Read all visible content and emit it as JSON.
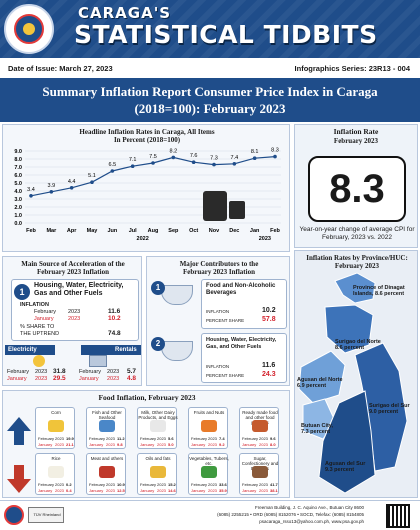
{
  "header": {
    "subtitle": "CARAGA'S",
    "title": "STATISTICAL TIDBITS",
    "date_of_issue": "Date of Issue: March 27, 2023",
    "series": "Infographics Series: 23R13 - 004"
  },
  "report_title": {
    "line1": "Summary Inflation Report Consumer Price Index in Caraga",
    "line2": "(2018=100): February 2023"
  },
  "headline_chart": {
    "title_line1": "Headline Inflation Rates in Caraga, All Items",
    "title_line2": "In Percent (2018=100)",
    "year_2022": "2022",
    "year_2023": "2023"
  },
  "chart_data": {
    "type": "line",
    "categories": [
      "Feb",
      "Mar",
      "Apr",
      "May",
      "Jun",
      "Jul",
      "Aug",
      "Sep",
      "Oct",
      "Nov",
      "Dec",
      "Jan",
      "Feb"
    ],
    "values": [
      3.4,
      3.9,
      4.4,
      5.1,
      6.5,
      7.1,
      7.5,
      8.2,
      7.6,
      7.3,
      7.4,
      8.1,
      8.3
    ],
    "y_ticks": [
      "0.0",
      "1.0",
      "2.0",
      "3.0",
      "4.0",
      "5.0",
      "6.0",
      "7.0",
      "8.0",
      "9.0"
    ],
    "ylim": [
      0,
      9
    ],
    "grid": true,
    "color": "#1f4d8a"
  },
  "inflation_rate": {
    "title_line1": "Inflation Rate",
    "title_line2": "February 2023",
    "value": "8.3",
    "note": "Year-on-year change of average CPI for February, 2023 vs. 2022"
  },
  "main_source": {
    "title_line1": "Main Source of Acceleration of the",
    "title_line2": "February 2023 Inflation",
    "rank": "1",
    "heading": "Housing, Water, Electricity, Gas and Other Fuels",
    "inflation_label": "INFLATION",
    "feb_label": "February",
    "feb_year": "2023",
    "feb_value": "11.6",
    "jan_label": "January",
    "jan_year": "2023",
    "jan_value": "10.2",
    "share_label": "% SHARE TO",
    "share_label2": "THE UPTREND",
    "share_value": "74.8",
    "electricity": {
      "label": "Electricity",
      "feb_label": "February",
      "feb_year": "2023",
      "feb_value": "31.8",
      "jan_label": "January",
      "jan_year": "2023",
      "jan_value": "29.5"
    },
    "rentals": {
      "label": "Rentals",
      "feb_label": "February",
      "feb_year": "2023",
      "feb_value": "5.7",
      "jan_label": "January",
      "jan_year": "2023",
      "jan_value": "4.8"
    }
  },
  "major_contributors": {
    "title_line1": "Major Contributors to the",
    "title_line2": "February 2023 Inflation",
    "items": [
      {
        "rank": "1",
        "name": "Food and Non-Alcoholic Beverages",
        "inflation_label": "INFLATION",
        "inflation": "10.2",
        "share_label": "PERCENT SHARE",
        "share": "57.8"
      },
      {
        "rank": "2",
        "name": "Housing, Water, Electricity, Gas, and Other Fuels",
        "inflation_label": "INFLATION",
        "inflation": "11.6",
        "share_label": "PERCENT SHARE",
        "share": "24.3"
      }
    ]
  },
  "map": {
    "title_line1": "Inflation Rates by Province/HUC:",
    "title_line2": "February 2023",
    "labels": [
      {
        "line1": "Province of Dinagat",
        "line2": "Islands, 8.6 percent"
      },
      {
        "line1": "Surigao del Norte",
        "line2": "8.6 percent"
      },
      {
        "line1": "Agusan del Norte",
        "line2": "6.9 percent"
      },
      {
        "line1": "Surigao del Sur",
        "line2": "9.0 percent"
      },
      {
        "line1": "Butuan City,",
        "line2": "7.3 percent"
      },
      {
        "line1": "Agusan del Sur",
        "line2": "9.3 percent"
      }
    ]
  },
  "food_inflation": {
    "title": "Food Inflation, February 2023",
    "up_items": [
      {
        "name": "Corn",
        "feb": "19.9",
        "jan": "21.1",
        "color": "#f0c43a"
      },
      {
        "name": "Fish and Other Seafood",
        "feb": "11.2",
        "jan": "9.8",
        "color": "#4a87c8"
      },
      {
        "name": "Milk, Other Dairy Products, and Eggs",
        "feb": "5.6",
        "jan": "5.0",
        "color": "#e8e8e8"
      },
      {
        "name": "Fruits and Nuts",
        "feb": "7.4",
        "jan": "9.2",
        "color": "#e87b2a"
      },
      {
        "name": "Ready made food and other food products",
        "feb": "9.6",
        "jan": "8.0",
        "color": "#c55b2e"
      }
    ],
    "down_items": [
      {
        "name": "Rice",
        "feb": "0.2",
        "jan": "0.4",
        "color": "#f2efe3"
      },
      {
        "name": "Meat and others",
        "feb": "10.9",
        "jan": "12.5",
        "color": "#c0392b"
      },
      {
        "name": "Oils and fats",
        "feb": "15.2",
        "jan": "14.6",
        "color": "#e9b83a"
      },
      {
        "name": "Vegetables, Tubers, etc.",
        "feb": "33.6",
        "jan": "35.9",
        "color": "#3f9a3f"
      },
      {
        "name": "Sugar, Confectionery and Desserts",
        "feb": "41.7",
        "jan": "38.1",
        "color": "#8a5a3a"
      }
    ],
    "feb_label": "February",
    "jan_label": "January",
    "year": "2023"
  },
  "footer": {
    "line1": "Freeman Building, J. C. Aquino Ave., Butuan City 8600",
    "line2": "(6085) 2255215 • ORD (6085) 8152076 • SOCD, Telefax: (6085) 8154805",
    "line3": "psacaraga_rsso13@yahoo.com.ph, www.psa.gov.ph",
    "cert_label": "TÜV Rheinland"
  },
  "colors": {
    "brand": "#1f4d8a",
    "accent_red": "#d21f2a"
  }
}
